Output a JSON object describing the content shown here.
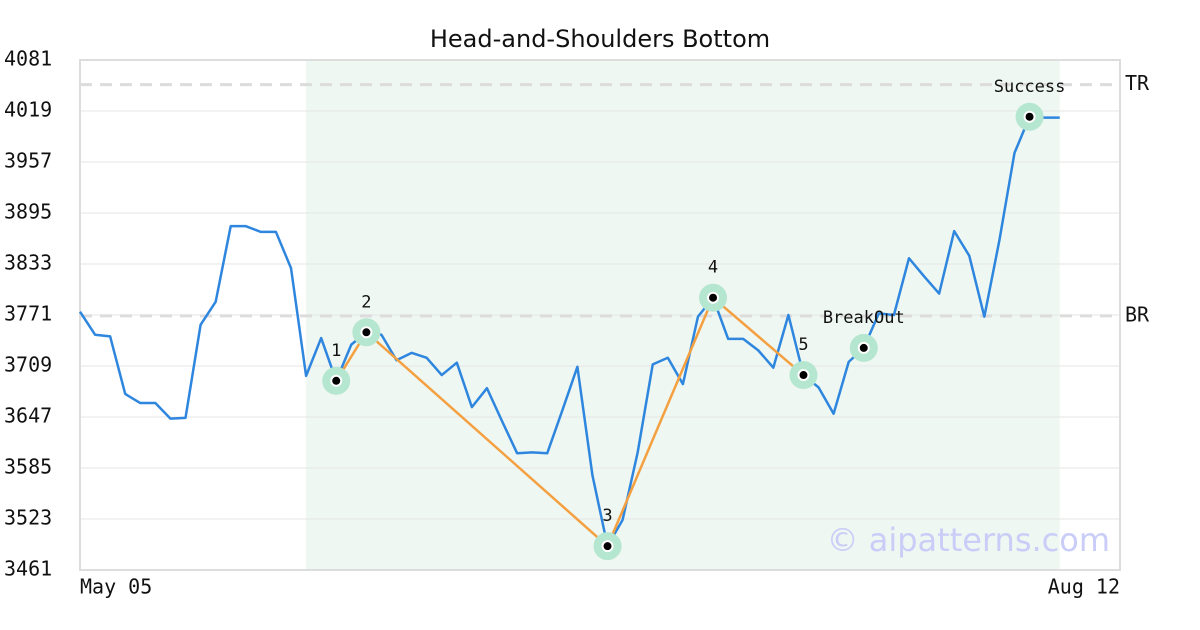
{
  "chart_data": {
    "type": "line",
    "title": "Head-and-Shoulders Bottom",
    "categories": [
      "May 05",
      null,
      null,
      null,
      null,
      null,
      null,
      null,
      null,
      null,
      null,
      null,
      null,
      null,
      null,
      null,
      null,
      null,
      null,
      null,
      null,
      null,
      null,
      null,
      null,
      null,
      null,
      null,
      null,
      null,
      null,
      null,
      null,
      null,
      null,
      null,
      null,
      null,
      null,
      null,
      null,
      null,
      null,
      null,
      null,
      null,
      null,
      null,
      null,
      null,
      null,
      null,
      null,
      null,
      null,
      null,
      null,
      null,
      null,
      null,
      null,
      null,
      null,
      null,
      null,
      null,
      null,
      null,
      null,
      "Aug 12"
    ],
    "values": [
      3775,
      3747,
      3745,
      3675,
      3664,
      3664,
      3645,
      3646,
      3759,
      3787,
      3879,
      3879,
      3872,
      3872,
      3828,
      3697,
      3743,
      3691,
      3735,
      3750,
      3747,
      3716,
      3725,
      3719,
      3698,
      3713,
      3659,
      3682,
      3642,
      3603,
      3604,
      3603,
      3655,
      3708,
      3576,
      3490,
      3522,
      3604,
      3711,
      3719,
      3687,
      3769,
      3792,
      3742,
      3742,
      3728,
      3707,
      3771,
      3698,
      3683,
      3651,
      3714,
      3731,
      3773,
      3771,
      3840,
      3818,
      3797,
      3873,
      3843,
      3769,
      3862,
      3968,
      4012,
      4011,
      4011,
      null,
      null,
      null,
      null
    ],
    "color": "#2e86de",
    "ylim": [
      3461,
      4081
    ],
    "yticks": [
      3461,
      3523,
      3585,
      3647,
      3709,
      3771,
      3833,
      3895,
      3957,
      4019,
      4081
    ],
    "grid": true,
    "zone": {
      "start": 15,
      "end": 65,
      "color": "#eef7f2"
    },
    "pattern": {
      "color": "#f4a040",
      "halo": "#b5e6cf",
      "points": [
        {
          "x": 17,
          "value": 3691,
          "label": "1"
        },
        {
          "x": 19,
          "value": 3750,
          "label": "2"
        },
        {
          "x": 35,
          "value": 3490,
          "label": "3"
        },
        {
          "x": 42,
          "value": 3792,
          "label": "4"
        },
        {
          "x": 48,
          "value": 3698,
          "label": "5"
        }
      ]
    },
    "signals": [
      {
        "x": 52,
        "value": 3731,
        "label": "BreakOut"
      },
      {
        "x": 63,
        "value": 4012,
        "label": "Success"
      }
    ],
    "levels": [
      {
        "label": "TR",
        "value": 4051
      },
      {
        "label": "BR",
        "value": 3770
      }
    ],
    "watermark": "© aipatterns.com"
  }
}
